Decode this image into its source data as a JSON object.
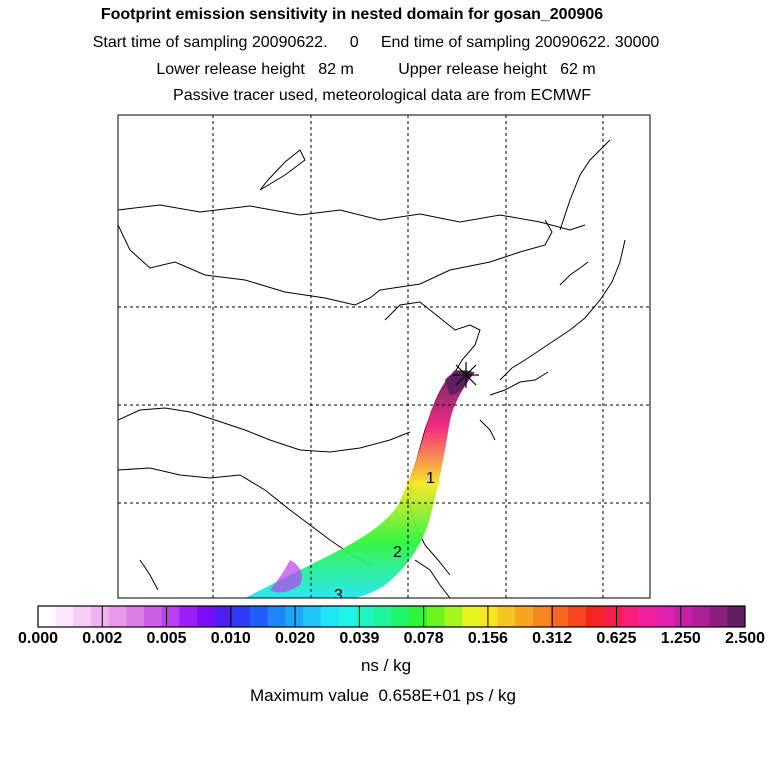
{
  "header": {
    "title": "Footprint emission sensitivity in nested domain for gosan_200906",
    "line2": "Start time of sampling 20090622.     0     End time of sampling 20090622. 30000",
    "line3": "Lower release height   82 m          Upper release height   62 m",
    "line4": "Passive tracer used, meteorological data are from ECMWF"
  },
  "map": {
    "trajectory_labels": [
      "1",
      "2",
      "3"
    ],
    "gridlines": "dashed"
  },
  "colorbar": {
    "tick_labels": [
      "0.000",
      "0.002",
      "0.005",
      "0.010",
      "0.020",
      "0.039",
      "0.078",
      "0.156",
      "0.312",
      "0.625",
      "1.250",
      "2.500"
    ],
    "unit": "ns / kg",
    "colors": [
      "#ffffff",
      "#fbe6fb",
      "#f6cdf6",
      "#f0b3f0",
      "#e69ae9",
      "#dc7fe5",
      "#cc5fe6",
      "#ba3ff0",
      "#9a1ff5",
      "#7a0ff5",
      "#4b1ff0",
      "#2f3cf5",
      "#1f5ff8",
      "#1f86fa",
      "#1fa6fa",
      "#1fc6fa",
      "#1fe6f5",
      "#1ff5e6",
      "#1ff5c0",
      "#1ff59a",
      "#1ff56a",
      "#2ff53a",
      "#6af51f",
      "#a6f51f",
      "#e6f51f",
      "#f5e61f",
      "#f5c61f",
      "#f5a61f",
      "#f5861f",
      "#f5661f",
      "#f5461f",
      "#f5261f",
      "#f51f4a",
      "#f51f7a",
      "#f01fa0",
      "#e01fb0",
      "#c81fa8",
      "#b01f98",
      "#8a1f80",
      "#601f60"
    ]
  },
  "footer": {
    "max_value": "Maximum value  0.658E+01 ps / kg"
  }
}
